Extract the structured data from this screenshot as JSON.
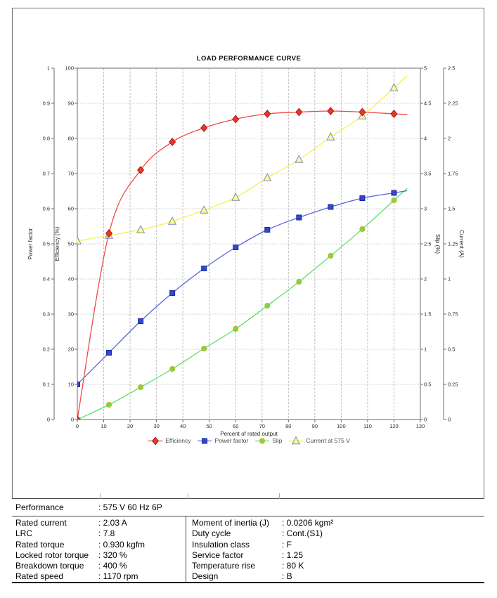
{
  "chart_data": {
    "type": "line",
    "title": "LOAD PERFORMANCE CURVE",
    "xlabel": "Percent of rated output",
    "x_axis": {
      "min": 0,
      "max": 130,
      "ticks": [
        "0",
        "10",
        "20",
        "30",
        "40",
        "50",
        "60",
        "70",
        "80",
        "90",
        "100",
        "110",
        "120",
        "130"
      ]
    },
    "axes": {
      "power_factor": {
        "label": "Power factor",
        "min": 0,
        "max": 1,
        "ticks": [
          "0",
          "0.1",
          "0.2",
          "0.3",
          "0.4",
          "0.5",
          "0.6",
          "0.7",
          "0.8",
          "0.9",
          "1"
        ]
      },
      "efficiency": {
        "label": "Efficiency (%)",
        "min": 0,
        "max": 100,
        "ticks": [
          "0",
          "10",
          "20",
          "30",
          "40",
          "50",
          "60",
          "70",
          "80",
          "90",
          "100"
        ]
      },
      "slip": {
        "label": "Slip (%)",
        "min": 0,
        "max": 5,
        "ticks": [
          "0",
          "0.5",
          "1",
          "1.5",
          "2",
          "2.5",
          "3",
          "3.5",
          "4",
          "4.5",
          "5"
        ]
      },
      "current": {
        "label": "Current (A)",
        "min": 0,
        "max": 2.5,
        "ticks": [
          "0",
          "0.25",
          "0.5",
          "0.75",
          "1",
          "1.25",
          "1.5",
          "1.75",
          "2",
          "2.25",
          "2.5"
        ]
      }
    },
    "x": [
      0,
      12,
      24,
      36,
      48,
      60,
      72,
      84,
      96,
      108,
      120
    ],
    "series": [
      {
        "name": "Current at 575 V",
        "axis": "current",
        "marker": "triangle",
        "line": "#f6ef55",
        "fill": "#ffff7d",
        "edge": "#7b82cf",
        "values": [
          1.27,
          1.31,
          1.35,
          1.41,
          1.49,
          1.58,
          1.72,
          1.85,
          2.01,
          2.16,
          2.36
        ]
      },
      {
        "name": "Slip",
        "axis": "slip",
        "marker": "circle",
        "line": "#5ce06a",
        "fill": "#6adf4e",
        "edge": "#d9a514",
        "values": [
          0,
          0.21,
          0.46,
          0.72,
          1.01,
          1.29,
          1.62,
          1.96,
          2.33,
          2.71,
          3.12
        ]
      },
      {
        "name": "Power factor",
        "axis": "power_factor",
        "marker": "square",
        "line": "#5863d8",
        "fill": "#3347cf",
        "edge": "#1b2a9e",
        "values": [
          0.1,
          0.19,
          0.28,
          0.36,
          0.43,
          0.49,
          0.54,
          0.575,
          0.605,
          0.63,
          0.645
        ]
      },
      {
        "name": "Efficiency",
        "axis": "efficiency",
        "marker": "diamond",
        "line": "#f04a42",
        "fill": "#ee352b",
        "edge": "#a61b12",
        "values": [
          0,
          53,
          71,
          79,
          83,
          85.5,
          87,
          87.5,
          87.8,
          87.5,
          87
        ]
      }
    ],
    "legend": [
      {
        "label": "Efficiency",
        "series": 3
      },
      {
        "label": "Power factor",
        "series": 2
      },
      {
        "label": "Slip",
        "series": 1
      },
      {
        "label": "Current at 575 V",
        "series": 0
      }
    ],
    "legend_position": "bottom",
    "grid": true
  },
  "table": {
    "performance": {
      "label": "Performance",
      "value": ": 575 V 60 Hz 6P"
    },
    "left_rows": [
      {
        "label": "Rated current",
        "value": ": 2.03 A"
      },
      {
        "label": "LRC",
        "value": ": 7.8"
      },
      {
        "label": "Rated torque",
        "value": ": 0.930 kgfm"
      },
      {
        "label": "Locked rotor torque",
        "value": ": 320 %"
      },
      {
        "label": "Breakdown torque",
        "value": ": 400 %"
      },
      {
        "label": "Rated speed",
        "value": ": 1170 rpm"
      }
    ],
    "right_rows": [
      {
        "label": "Moment of inertia (J)",
        "value": ": 0.0206 kgm²"
      },
      {
        "label": "Duty cycle",
        "value": ": Cont.(S1)"
      },
      {
        "label": "Insulation class",
        "value": ": F"
      },
      {
        "label": "Service factor",
        "value": ": 1.25"
      },
      {
        "label": "Temperature rise",
        "value": ": 80 K"
      },
      {
        "label": "Design",
        "value": ": B"
      }
    ]
  }
}
